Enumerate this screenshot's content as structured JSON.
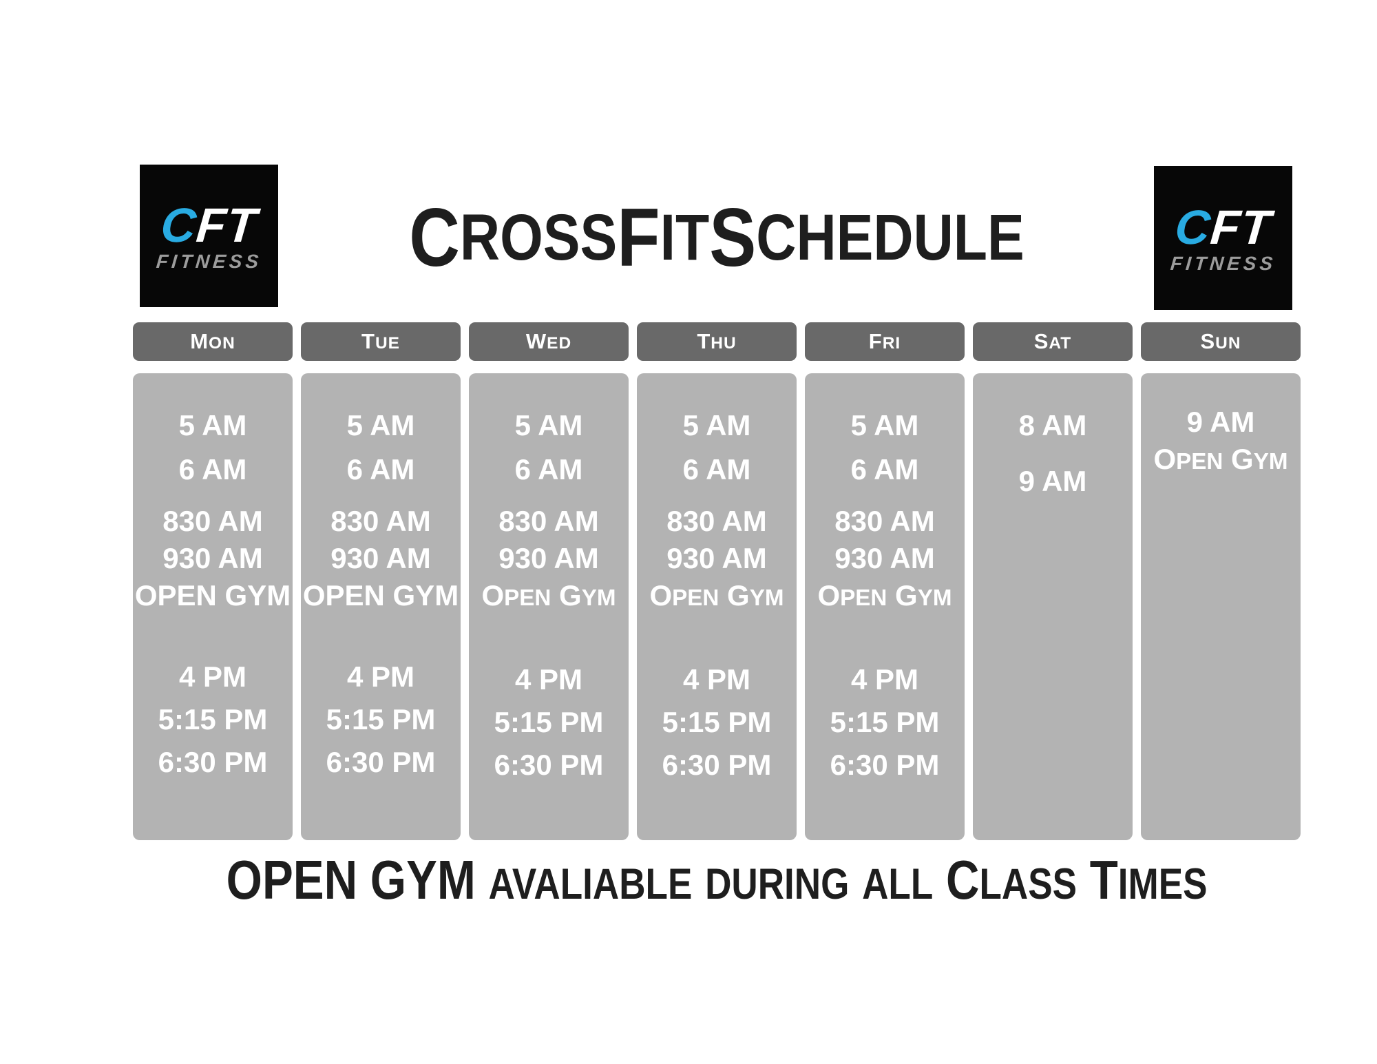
{
  "title": "CrossFit Schedule",
  "caption": "OPEN GYM avaliable during all Class Times",
  "logo": {
    "mark_c": "C",
    "mark_ft": "FT",
    "subtitle": "FITNESS",
    "accent_color": "#29abe2",
    "subtitle_color": "#9c9c9c",
    "background": "#070707"
  },
  "colors": {
    "page_bg": "#ffffff",
    "header_pill_bg": "#696969",
    "column_bg": "#b3b3b3",
    "time_text": "#ffffff",
    "heading_text": "#1e1e1e"
  },
  "days": [
    {
      "label": "Mon",
      "groups": [
        [
          "5 AM",
          "6 AM"
        ],
        [
          "830 AM",
          "930 AM",
          "OPEN GYM"
        ],
        [
          "4 PM",
          "5:15 PM",
          "6:30 PM"
        ]
      ]
    },
    {
      "label": "Tue",
      "groups": [
        [
          "5 AM",
          "6 AM"
        ],
        [
          "830 AM",
          "930 AM",
          "OPEN GYM"
        ],
        [
          "4 PM",
          "5:15 PM",
          "6:30 PM"
        ]
      ]
    },
    {
      "label": "Wed",
      "groups": [
        [
          "5 AM",
          "6 AM"
        ],
        [
          "830 AM",
          "930 AM",
          "Open Gym"
        ],
        [
          "4 PM",
          "5:15 PM",
          "6:30 PM"
        ]
      ]
    },
    {
      "label": "Thu",
      "groups": [
        [
          "5 AM",
          "6 AM"
        ],
        [
          "830 AM",
          "930 AM",
          "Open Gym"
        ],
        [
          "4 PM",
          "5:15 PM",
          "6:30 PM"
        ]
      ]
    },
    {
      "label": "Fri",
      "groups": [
        [
          "5 AM",
          "6 AM"
        ],
        [
          "830 AM",
          "930 AM",
          "Open Gym"
        ],
        [
          "4 PM",
          "5:15 PM",
          "6:30 PM"
        ]
      ]
    },
    {
      "label": "Sat",
      "groups": [
        [
          "8 AM"
        ],
        [
          "9 AM"
        ]
      ]
    },
    {
      "label": "Sun",
      "groups": [
        [
          "9 AM",
          "Open Gym"
        ]
      ]
    }
  ]
}
